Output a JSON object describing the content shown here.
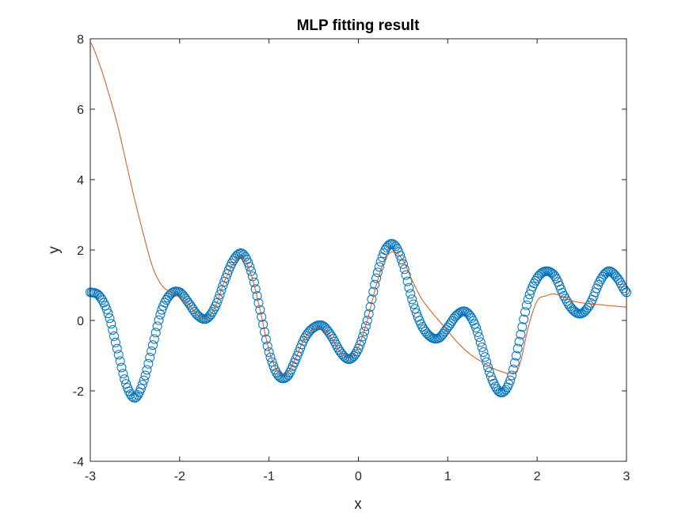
{
  "chart_data": {
    "type": "scatter",
    "title": "MLP fitting result",
    "xlabel": "x",
    "ylabel": "y",
    "xlim": [
      -3,
      3
    ],
    "ylim": [
      -4,
      8
    ],
    "xticks": [
      -3,
      -2,
      -1,
      0,
      1,
      2,
      3
    ],
    "yticks": [
      -4,
      -2,
      0,
      2,
      4,
      6,
      8
    ],
    "grid": false,
    "series": [
      {
        "kind": "scatter",
        "marker": "circle-open",
        "color": "#0072BD",
        "x": [
          -3.0,
          -2.9,
          -2.8,
          -2.7,
          -2.6,
          -2.5,
          -2.4,
          -2.3,
          -2.2,
          -2.1,
          -2.0,
          -1.9,
          -1.8,
          -1.7,
          -1.6,
          -1.5,
          -1.4,
          -1.3,
          -1.2,
          -1.1,
          -1.0,
          -0.9,
          -0.8,
          -0.7,
          -0.6,
          -0.5,
          -0.4,
          -0.3,
          -0.2,
          -0.1,
          0.0,
          0.1,
          0.2,
          0.3,
          0.4,
          0.5,
          0.6,
          0.7,
          0.8,
          0.9,
          1.0,
          1.1,
          1.2,
          1.3,
          1.4,
          1.5,
          1.6,
          1.7,
          1.8,
          1.9,
          2.0,
          2.1,
          2.2,
          2.3,
          2.4,
          2.5,
          2.6,
          2.7,
          2.8,
          2.9,
          3.0
        ],
        "y": [
          0.8,
          0.7,
          0.2,
          -0.8,
          -1.8,
          -2.2,
          -1.7,
          -0.7,
          0.3,
          0.75,
          0.8,
          0.5,
          0.15,
          0.05,
          0.4,
          1.1,
          1.7,
          1.9,
          1.4,
          0.3,
          -0.9,
          -1.55,
          -1.6,
          -1.1,
          -0.5,
          -0.2,
          -0.15,
          -0.45,
          -0.9,
          -1.1,
          -0.8,
          0.0,
          1.2,
          2.0,
          2.15,
          1.6,
          0.6,
          -0.1,
          -0.45,
          -0.5,
          -0.2,
          0.15,
          0.25,
          -0.1,
          -0.9,
          -1.7,
          -2.05,
          -1.7,
          -0.6,
          0.6,
          1.2,
          1.4,
          1.25,
          0.7,
          0.3,
          0.2,
          0.5,
          1.1,
          1.4,
          1.2,
          0.8
        ]
      },
      {
        "kind": "line",
        "color": "#D95319",
        "x": [
          -3.0,
          -2.9,
          -2.8,
          -2.7,
          -2.6,
          -2.5,
          -2.4,
          -2.3,
          -2.2,
          -2.1,
          -2.0,
          -1.9,
          -1.8,
          -1.7,
          -1.6,
          -1.5,
          -1.4,
          -1.3,
          -1.2,
          -1.1,
          -1.0,
          -0.9,
          -0.8,
          -0.7,
          -0.6,
          -0.5,
          -0.4,
          -0.3,
          -0.2,
          -0.1,
          0.0,
          0.1,
          0.2,
          0.3,
          0.4,
          0.5,
          0.6,
          0.7,
          0.8,
          0.9,
          1.0,
          1.1,
          1.2,
          1.3,
          1.4,
          1.5,
          1.6,
          1.7,
          1.8,
          1.9,
          2.0,
          2.1,
          2.2,
          2.3,
          2.4,
          2.5,
          2.6,
          2.7,
          2.8,
          2.9,
          3.0
        ],
        "y": [
          7.9,
          7.3,
          6.5,
          5.6,
          4.5,
          3.4,
          2.4,
          1.5,
          1.0,
          0.8,
          0.65,
          0.45,
          0.15,
          0.05,
          0.4,
          1.1,
          1.6,
          1.8,
          1.3,
          0.3,
          -0.85,
          -1.45,
          -1.5,
          -1.05,
          -0.5,
          -0.25,
          -0.25,
          -0.5,
          -0.9,
          -1.05,
          -0.75,
          0.0,
          1.0,
          1.75,
          1.95,
          1.7,
          1.15,
          0.65,
          0.3,
          0.0,
          -0.3,
          -0.6,
          -0.85,
          -1.05,
          -1.2,
          -1.35,
          -1.45,
          -1.5,
          -1.3,
          -0.2,
          0.55,
          0.7,
          0.75,
          0.65,
          0.55,
          0.5,
          0.47,
          0.45,
          0.42,
          0.4,
          0.38
        ]
      }
    ]
  }
}
